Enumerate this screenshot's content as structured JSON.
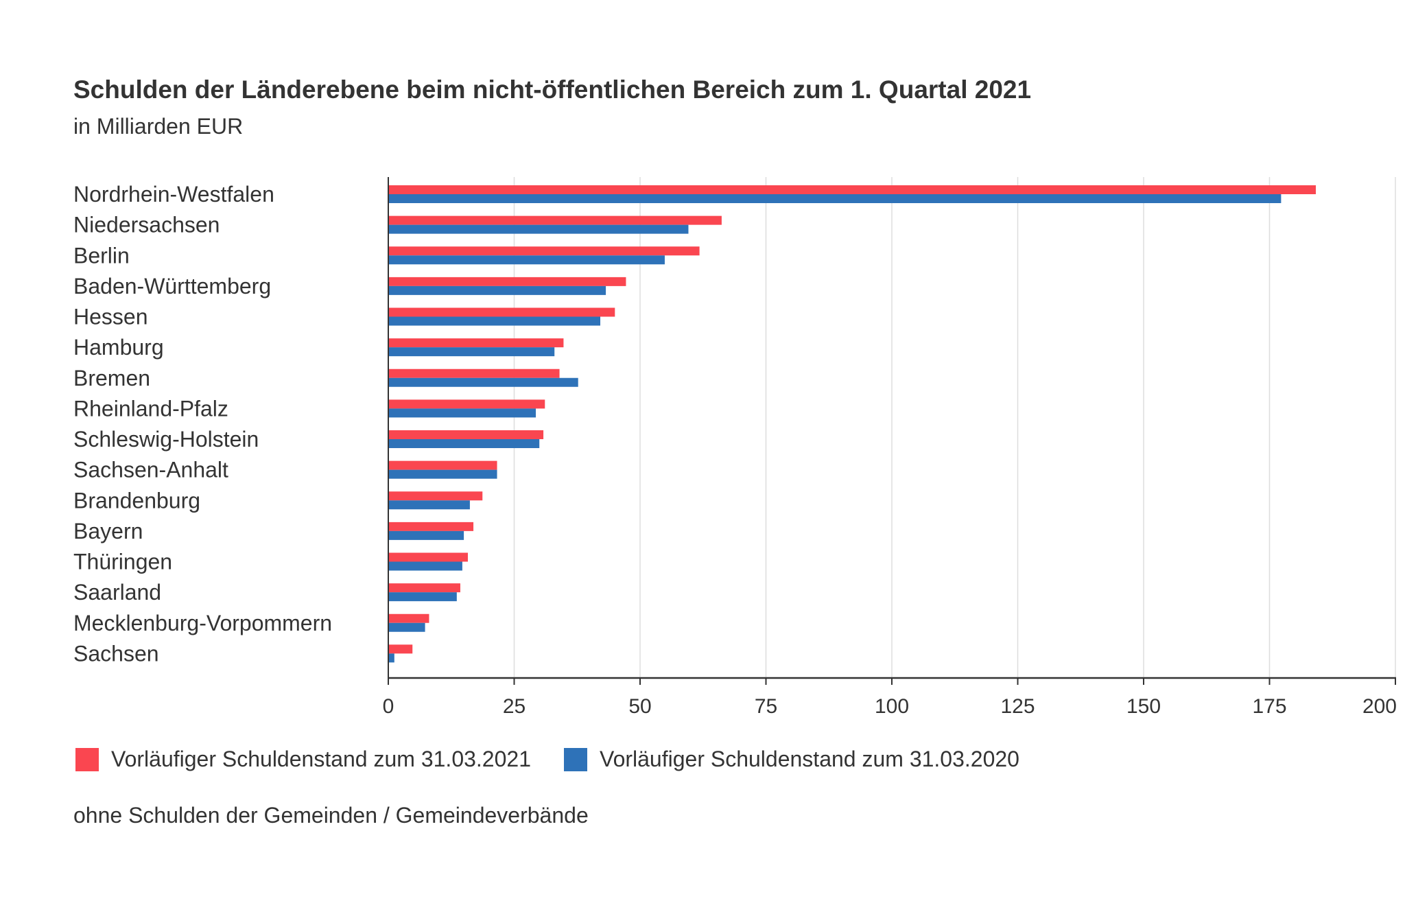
{
  "chart_data": {
    "type": "bar",
    "orientation": "horizontal",
    "title": "Schulden der Länderebene beim nicht-öffentlichen Bereich zum 1. Quartal 2021",
    "subtitle": "in Milliarden EUR",
    "footnote": "ohne Schulden der Gemeinden / Gemeindeverbände",
    "categories": [
      "Nordrhein-Westfalen",
      "Niedersachsen",
      "Berlin",
      "Baden-Württemberg",
      "Hessen",
      "Hamburg",
      "Bremen",
      "Rheinland-Pfalz",
      "Schleswig-Holstein",
      "Sachsen-Anhalt",
      "Brandenburg",
      "Bayern",
      "Thüringen",
      "Saarland",
      "Mecklenburg-Vorpommern",
      "Sachsen"
    ],
    "series": [
      {
        "name": "Vorläufiger Schuldenstand zum 31.03.2021",
        "color": "#fa4650",
        "values": [
          184.2,
          66.2,
          61.8,
          47.2,
          45.0,
          34.8,
          34.0,
          31.1,
          30.8,
          21.6,
          18.7,
          16.9,
          15.8,
          14.3,
          8.1,
          4.8
        ]
      },
      {
        "name": "Vorläufiger Schuldenstand zum 31.03.2020",
        "color": "#2e72b8",
        "values": [
          177.3,
          59.6,
          54.9,
          43.2,
          42.1,
          33.0,
          37.7,
          29.3,
          30.0,
          21.6,
          16.2,
          15.0,
          14.7,
          13.6,
          7.3,
          1.2
        ]
      }
    ],
    "xlim": [
      0,
      200
    ],
    "xticks": [
      "0",
      "25",
      "50",
      "75",
      "100",
      "125",
      "150",
      "175",
      "200"
    ],
    "grid": "vertical",
    "legend": "bottom"
  }
}
